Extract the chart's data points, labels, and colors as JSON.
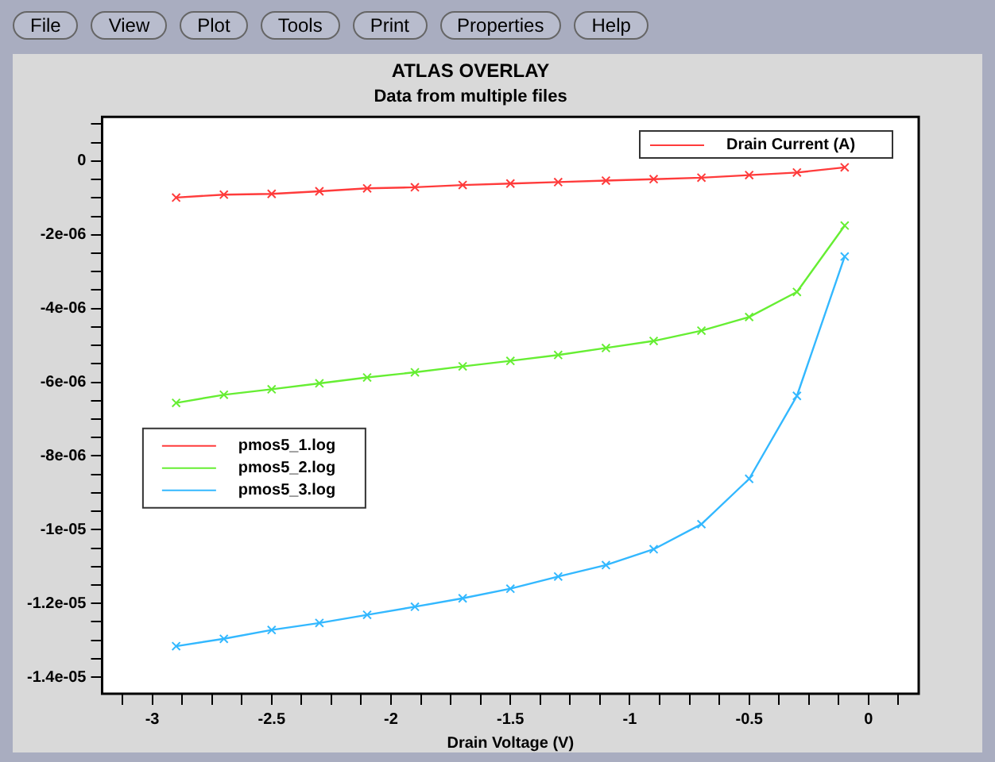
{
  "chart_data": {
    "type": "line",
    "title": "ATLAS OVERLAY",
    "subtitle": "Data from multiple files",
    "xlabel": "Drain Voltage (V)",
    "ylabel": "Drain Current (A)",
    "annotations": [
      "File",
      "View",
      "Plot",
      "Tools",
      "Print",
      "Properties",
      "Help"
    ],
    "x": [
      -2.9,
      -2.7,
      -2.5,
      -2.3,
      -2.1,
      -1.9,
      -1.7,
      -1.5,
      -1.3,
      -1.1,
      -0.9,
      -0.7,
      -0.5,
      -0.3,
      -0.1
    ],
    "series": [
      {
        "name": "pmos5_1.log",
        "color": "#ff3b3b",
        "values": [
          -9.9e-07,
          -9.1e-07,
          -8.9e-07,
          -8.2e-07,
          -7.4e-07,
          -7.1e-07,
          -6.5e-07,
          -6.1e-07,
          -5.7e-07,
          -5.3e-07,
          -4.9e-07,
          -4.5e-07,
          -3.8e-07,
          -3.1e-07,
          -1.7e-07
        ]
      },
      {
        "name": "pmos5_2.log",
        "color": "#66ee33",
        "values": [
          -6.56e-06,
          -6.34e-06,
          -6.19e-06,
          -6.03e-06,
          -5.87e-06,
          -5.73e-06,
          -5.57e-06,
          -5.42e-06,
          -5.26e-06,
          -5.07e-06,
          -4.88e-06,
          -4.6e-06,
          -4.23e-06,
          -3.55e-06,
          -1.75e-06
        ]
      },
      {
        "name": "pmos5_3.log",
        "color": "#33b8ff",
        "values": [
          -1.316e-05,
          -1.296e-05,
          -1.272e-05,
          -1.253e-05,
          -1.231e-05,
          -1.209e-05,
          -1.186e-05,
          -1.16e-05,
          -1.127e-05,
          -1.096e-05,
          -1.053e-05,
          -9.85e-06,
          -8.62e-06,
          -6.37e-06,
          -2.59e-06
        ]
      }
    ],
    "xlim": [
      -3.21,
      0.21
    ],
    "xticks": [
      {
        "value": -3.125,
        "label": null
      },
      -3,
      {
        "value": -2.875,
        "label": null
      },
      {
        "value": -2.75,
        "label": null
      },
      {
        "value": -2.625,
        "label": null
      },
      -2.5,
      {
        "value": -2.375,
        "label": null
      },
      {
        "value": -2.25,
        "label": null
      },
      {
        "value": -2.125,
        "label": null
      },
      -2,
      {
        "value": -1.875,
        "label": null
      },
      {
        "value": -1.75,
        "label": null
      },
      {
        "value": -1.625,
        "label": null
      },
      -1.5,
      {
        "value": -1.375,
        "label": null
      },
      {
        "value": -1.25,
        "label": null
      },
      {
        "value": -1.125,
        "label": null
      },
      -1,
      {
        "value": -0.875,
        "label": null
      },
      {
        "value": -0.75,
        "label": null
      },
      {
        "value": -0.625,
        "label": null
      },
      -0.5,
      {
        "value": -0.375,
        "label": null
      },
      {
        "value": -0.25,
        "label": null
      },
      {
        "value": -0.125,
        "label": null
      },
      0,
      {
        "value": 0.125,
        "label": null
      }
    ],
    "ylim": [
      -1.445e-05,
      1.2e-06
    ],
    "yticks": [
      {
        "value": 1e-06,
        "label": null
      },
      {
        "value": 5e-07,
        "label": null
      },
      0,
      {
        "value": -5e-07,
        "label": null
      },
      {
        "value": -1e-06,
        "label": null
      },
      {
        "value": -1.5e-06,
        "label": null
      },
      {
        "value": -2e-06,
        "label": "-2e-06"
      },
      {
        "value": -2.5e-06,
        "label": null
      },
      {
        "value": -3e-06,
        "label": null
      },
      {
        "value": -3.5e-06,
        "label": null
      },
      {
        "value": -4e-06,
        "label": "-4e-06"
      },
      {
        "value": -4.5e-06,
        "label": null
      },
      {
        "value": -5e-06,
        "label": null
      },
      {
        "value": -5.5e-06,
        "label": null
      },
      {
        "value": -6e-06,
        "label": "-6e-06"
      },
      {
        "value": -6.5e-06,
        "label": null
      },
      {
        "value": -7e-06,
        "label": null
      },
      {
        "value": -7.5e-06,
        "label": null
      },
      {
        "value": -8e-06,
        "label": "-8e-06"
      },
      {
        "value": -8.5e-06,
        "label": null
      },
      {
        "value": -9e-06,
        "label": null
      },
      {
        "value": -9.5e-06,
        "label": null
      },
      {
        "value": -1e-05,
        "label": "-1e-05"
      },
      {
        "value": -1.05e-05,
        "label": null
      },
      {
        "value": -1.1e-05,
        "label": null
      },
      {
        "value": -1.15e-05,
        "label": null
      },
      {
        "value": -1.2e-05,
        "label": "-1.2e-05"
      },
      {
        "value": -1.25e-05,
        "label": null
      },
      {
        "value": -1.3e-05,
        "label": null
      },
      {
        "value": -1.35e-05,
        "label": null
      },
      {
        "value": -1.4e-05,
        "label": "-1.4e-05"
      }
    ],
    "grid": false,
    "legend": "left",
    "marker": "cross",
    "line_style": "solid"
  }
}
